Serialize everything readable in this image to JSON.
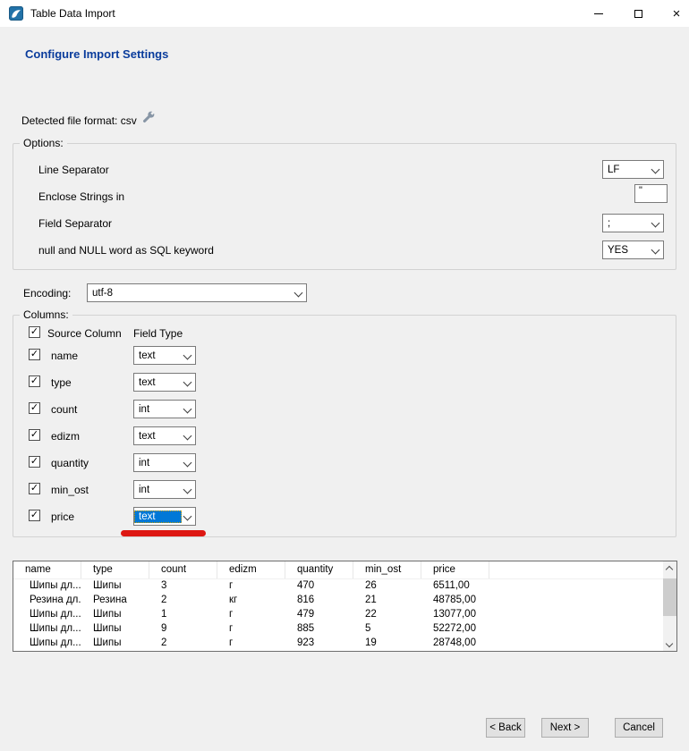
{
  "window": {
    "title": "Table Data Import",
    "close_glyph": "×"
  },
  "page": {
    "heading": "Configure Import Settings",
    "detected_format": "Detected file format: csv"
  },
  "options": {
    "legend": "Options:",
    "rows": [
      {
        "label": "Line Separator",
        "control": "select",
        "value": "LF"
      },
      {
        "label": "Enclose Strings in",
        "control": "textbox",
        "value": "\""
      },
      {
        "label": "Field Separator",
        "control": "select",
        "value": ";"
      },
      {
        "label": "null and NULL word as SQL keyword",
        "control": "select",
        "value": "YES"
      }
    ]
  },
  "encoding": {
    "label": "Encoding:",
    "value": "utf-8"
  },
  "columns": {
    "legend": "Columns:",
    "header": {
      "source": "Source Column",
      "field_type": "Field Type"
    },
    "rows": [
      {
        "name": "name",
        "field_type": "text",
        "checked": true,
        "selected": false
      },
      {
        "name": "type",
        "field_type": "text",
        "checked": true,
        "selected": false
      },
      {
        "name": "count",
        "field_type": "int",
        "checked": true,
        "selected": false
      },
      {
        "name": "edizm",
        "field_type": "text",
        "checked": true,
        "selected": false
      },
      {
        "name": "quantity",
        "field_type": "int",
        "checked": true,
        "selected": false
      },
      {
        "name": "min_ost",
        "field_type": "int",
        "checked": true,
        "selected": false
      },
      {
        "name": "price",
        "field_type": "text",
        "checked": true,
        "selected": true
      }
    ]
  },
  "preview": {
    "headers": [
      "name",
      "type",
      "count",
      "edizm",
      "quantity",
      "min_ost",
      "price"
    ],
    "rows": [
      [
        "Шипы дл...",
        "Шипы",
        "3",
        "г",
        "470",
        "26",
        "6511,00"
      ],
      [
        "Резина дл...",
        "Резина",
        "2",
        "кг",
        "816",
        "21",
        "48785,00"
      ],
      [
        "Шипы дл...",
        "Шипы",
        "1",
        "г",
        "479",
        "22",
        "13077,00"
      ],
      [
        "Шипы дл...",
        "Шипы",
        "9",
        "г",
        "885",
        "5",
        "52272,00"
      ],
      [
        "Шипы дл...",
        "Шипы",
        "2",
        "г",
        "923",
        "19",
        "28748,00"
      ]
    ]
  },
  "buttons": {
    "back": "< Back",
    "next": "Next >",
    "cancel": "Cancel"
  },
  "icons": {
    "check": "✓"
  },
  "colors": {
    "heading_blue": "#0a3c9c",
    "selection_blue": "#0078d7",
    "annotation_red": "#dd1712",
    "app_icon_blue": "#2272a8"
  }
}
